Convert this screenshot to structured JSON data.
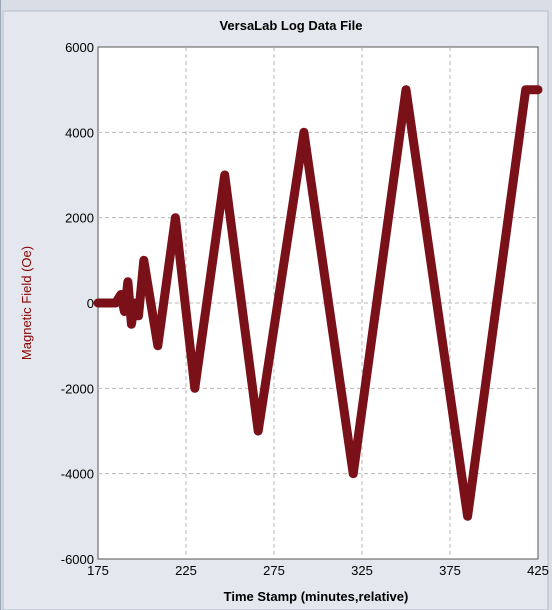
{
  "chart_data": {
    "type": "line",
    "title": "VersaLab Log Data File",
    "xlabel": "Time Stamp (minutes,relative)",
    "ylabel": "Magnetic Field (Oe)",
    "xlim": [
      175,
      425
    ],
    "ylim": [
      -6000,
      6000
    ],
    "xticks": [
      175,
      225,
      275,
      325,
      375,
      425
    ],
    "yticks": [
      -6000,
      -4000,
      -2000,
      0,
      2000,
      4000,
      6000
    ],
    "grid": true,
    "series": [
      {
        "color": "#7a1018",
        "x": [
          175,
          185,
          188,
          190,
          192,
          194,
          196,
          198,
          201,
          205,
          209,
          219,
          230,
          247,
          266,
          292,
          320,
          350,
          385,
          418,
          425
        ],
        "y": [
          0,
          0,
          200,
          -200,
          500,
          -500,
          0,
          -300,
          1000,
          0,
          -1000,
          2000,
          -2000,
          3000,
          -3000,
          4000,
          -4000,
          5000,
          -5000,
          5000,
          5000
        ]
      }
    ]
  }
}
